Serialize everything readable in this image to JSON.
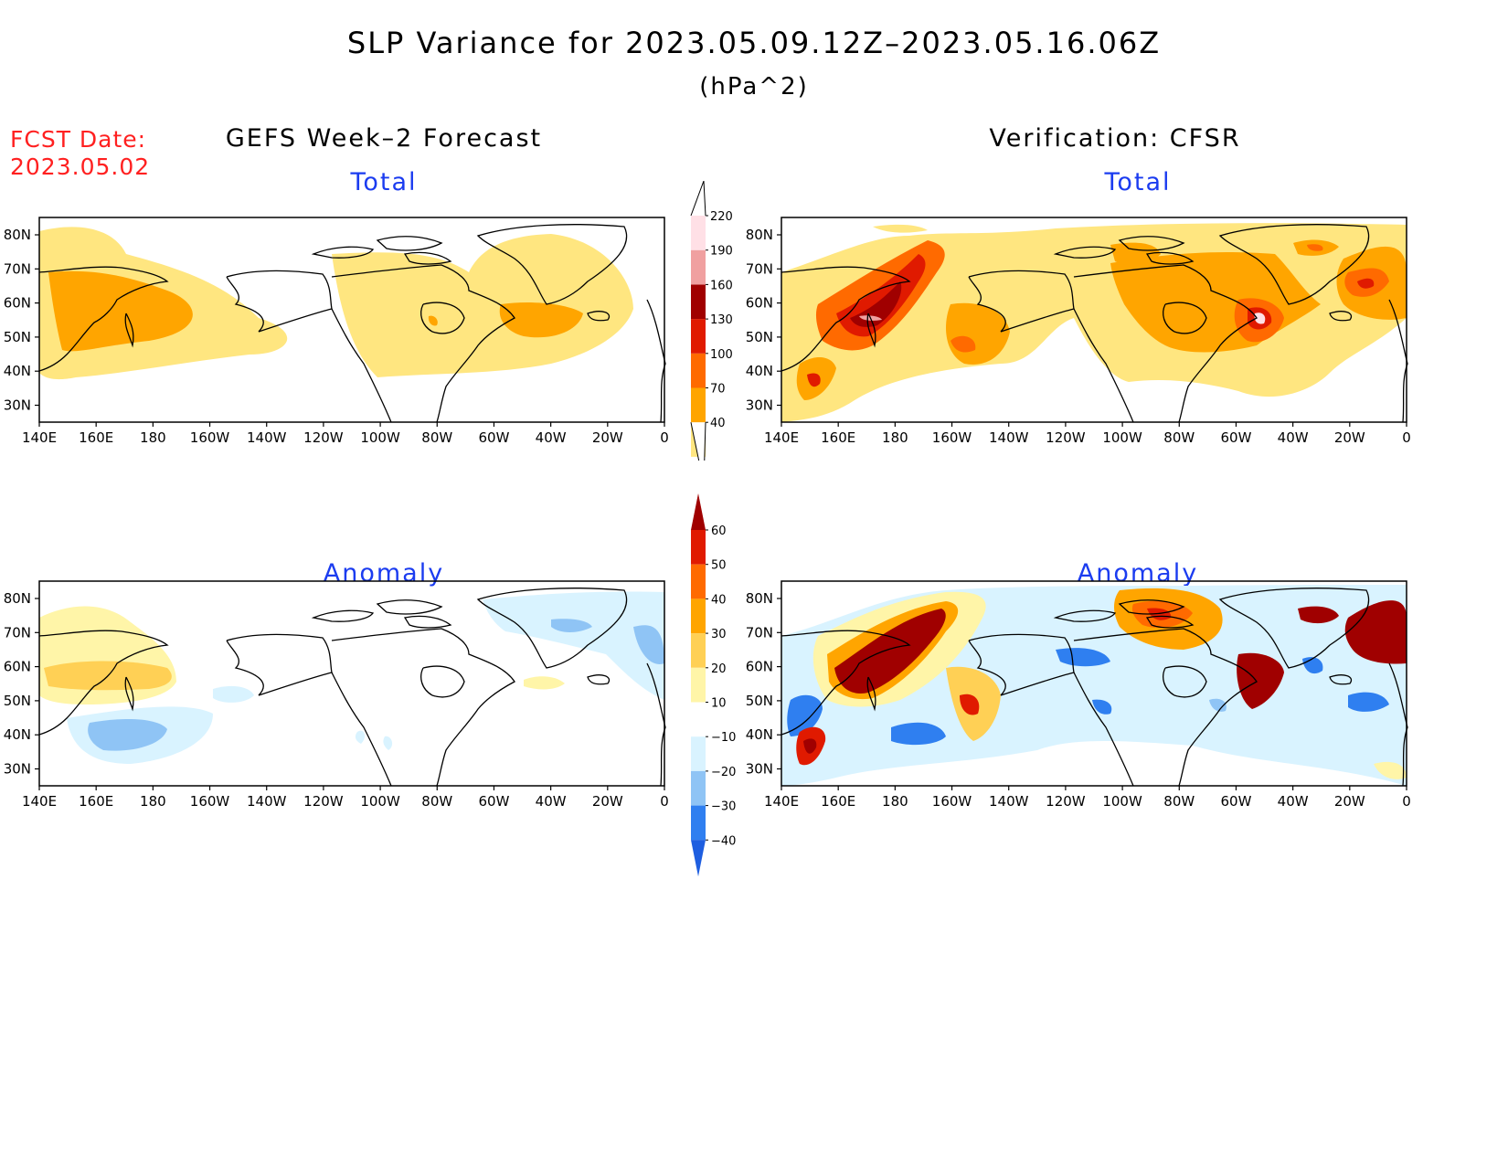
{
  "title": "SLP Variance for 2023.05.09.12Z–2023.05.16.06Z",
  "units": "(hPa^2)",
  "fcst_label": "FCST Date:",
  "fcst_date": "2023.05.02",
  "left_column_title": "GEFS Week–2 Forecast",
  "right_column_title": "Verification: CFSR",
  "panels": {
    "fcst_total": {
      "title": "Total"
    },
    "verif_total": {
      "title": "Total"
    },
    "fcst_anom": {
      "title": "Anomaly"
    },
    "verif_anom": {
      "title": "Anomaly"
    }
  },
  "map_axes": {
    "lon_labels": [
      "140E",
      "160E",
      "180",
      "160W",
      "140W",
      "120W",
      "100W",
      "80W",
      "60W",
      "40W",
      "20W",
      "0"
    ],
    "lat_labels": [
      "80N",
      "70N",
      "60N",
      "50N",
      "40N",
      "30N"
    ]
  },
  "total_colorbar": {
    "levels": [
      "40",
      "70",
      "100",
      "130",
      "160",
      "190",
      "220"
    ],
    "colors": [
      "#ffe680",
      "#ffa500",
      "#ff6a00",
      "#e01a00",
      "#a00000",
      "#f0a0a0",
      "#ffe0e6"
    ]
  },
  "anomaly_colorbar": {
    "levels": [
      "−40",
      "−30",
      "−20",
      "−10",
      "10",
      "20",
      "30",
      "40",
      "50",
      "60"
    ],
    "colors": [
      "#1e5ee0",
      "#2f7ff0",
      "#8fc4f5",
      "#d9f3ff",
      "#ffffff",
      "#fff5a8",
      "#ffd055",
      "#ffa500",
      "#ff6a00",
      "#e01a00",
      "#a00000"
    ]
  }
}
